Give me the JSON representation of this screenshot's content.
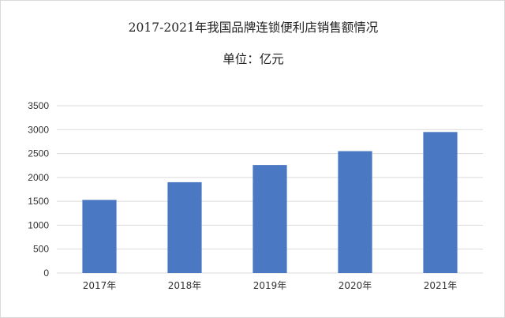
{
  "chart_data": {
    "type": "bar",
    "title": "2017-2021年我国品牌连锁便利店销售额情况",
    "subtitle": "单位：亿元",
    "categories": [
      "2017年",
      "2018年",
      "2019年",
      "2020年",
      "2021年"
    ],
    "values": [
      1530,
      1900,
      2260,
      2550,
      2950
    ],
    "ylim": [
      0,
      3500
    ],
    "yticks": [
      0,
      500,
      1000,
      1500,
      2000,
      2500,
      3000,
      3500
    ],
    "grid": true,
    "bar_color": "#4a78c2",
    "grid_color": "#d9d9d9"
  }
}
